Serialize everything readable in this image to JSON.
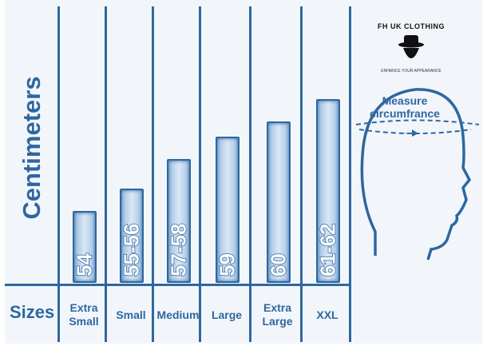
{
  "chart_data": {
    "type": "bar",
    "ylabel": "Centimeters",
    "xlabel": "Sizes",
    "categories": [
      "Extra Small",
      "Small",
      "Medium",
      "Large",
      "Extra Large",
      "XXL"
    ],
    "value_labels": [
      "54",
      "55-56",
      "57-58",
      "59",
      "60",
      "61-62"
    ],
    "values": [
      54,
      55.5,
      57.5,
      59,
      60,
      61.5
    ],
    "grid": false
  },
  "logo": {
    "brand": "FH UK CLOTHING",
    "tagline": "ENHANCE YOUR APPEARANCE"
  },
  "diagram": {
    "title": "Measure circumfrance"
  },
  "colors": {
    "primary": "#2e67a0",
    "background": "#f2f6fb"
  }
}
